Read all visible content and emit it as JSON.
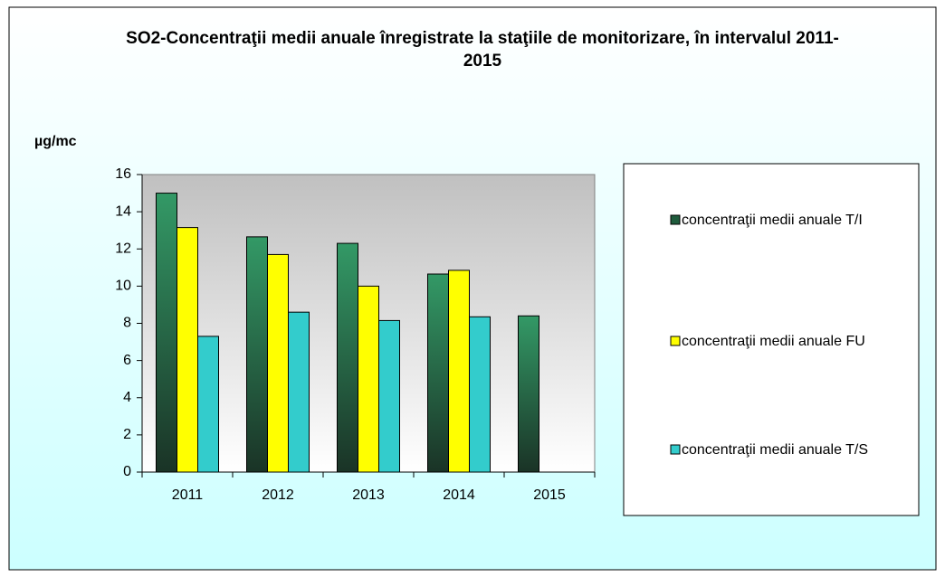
{
  "chart_data": {
    "type": "bar",
    "title": "SO2-Concentraţii medii anuale înregistrate la staţiile de monitorizare, în intervalul 2011-2015",
    "y_label": "µg/mc",
    "categories": [
      "2011",
      "2012",
      "2013",
      "2014",
      "2015"
    ],
    "series": [
      {
        "name": "concentraţii medii anuale T/I",
        "color": "#339966",
        "values": [
          15.0,
          12.65,
          12.3,
          10.65,
          8.4
        ]
      },
      {
        "name": "concentraţii medii anuale FU",
        "color": "#ffff00",
        "values": [
          13.15,
          11.7,
          10.0,
          10.85,
          null
        ]
      },
      {
        "name": "concentraţii medii anuale T/S",
        "color": "#33cccc",
        "values": [
          7.3,
          8.6,
          8.15,
          8.35,
          null
        ]
      }
    ],
    "ylim": [
      0,
      16
    ],
    "yticks": [
      0,
      2,
      4,
      6,
      8,
      10,
      12,
      14,
      16
    ],
    "legend": "right"
  }
}
